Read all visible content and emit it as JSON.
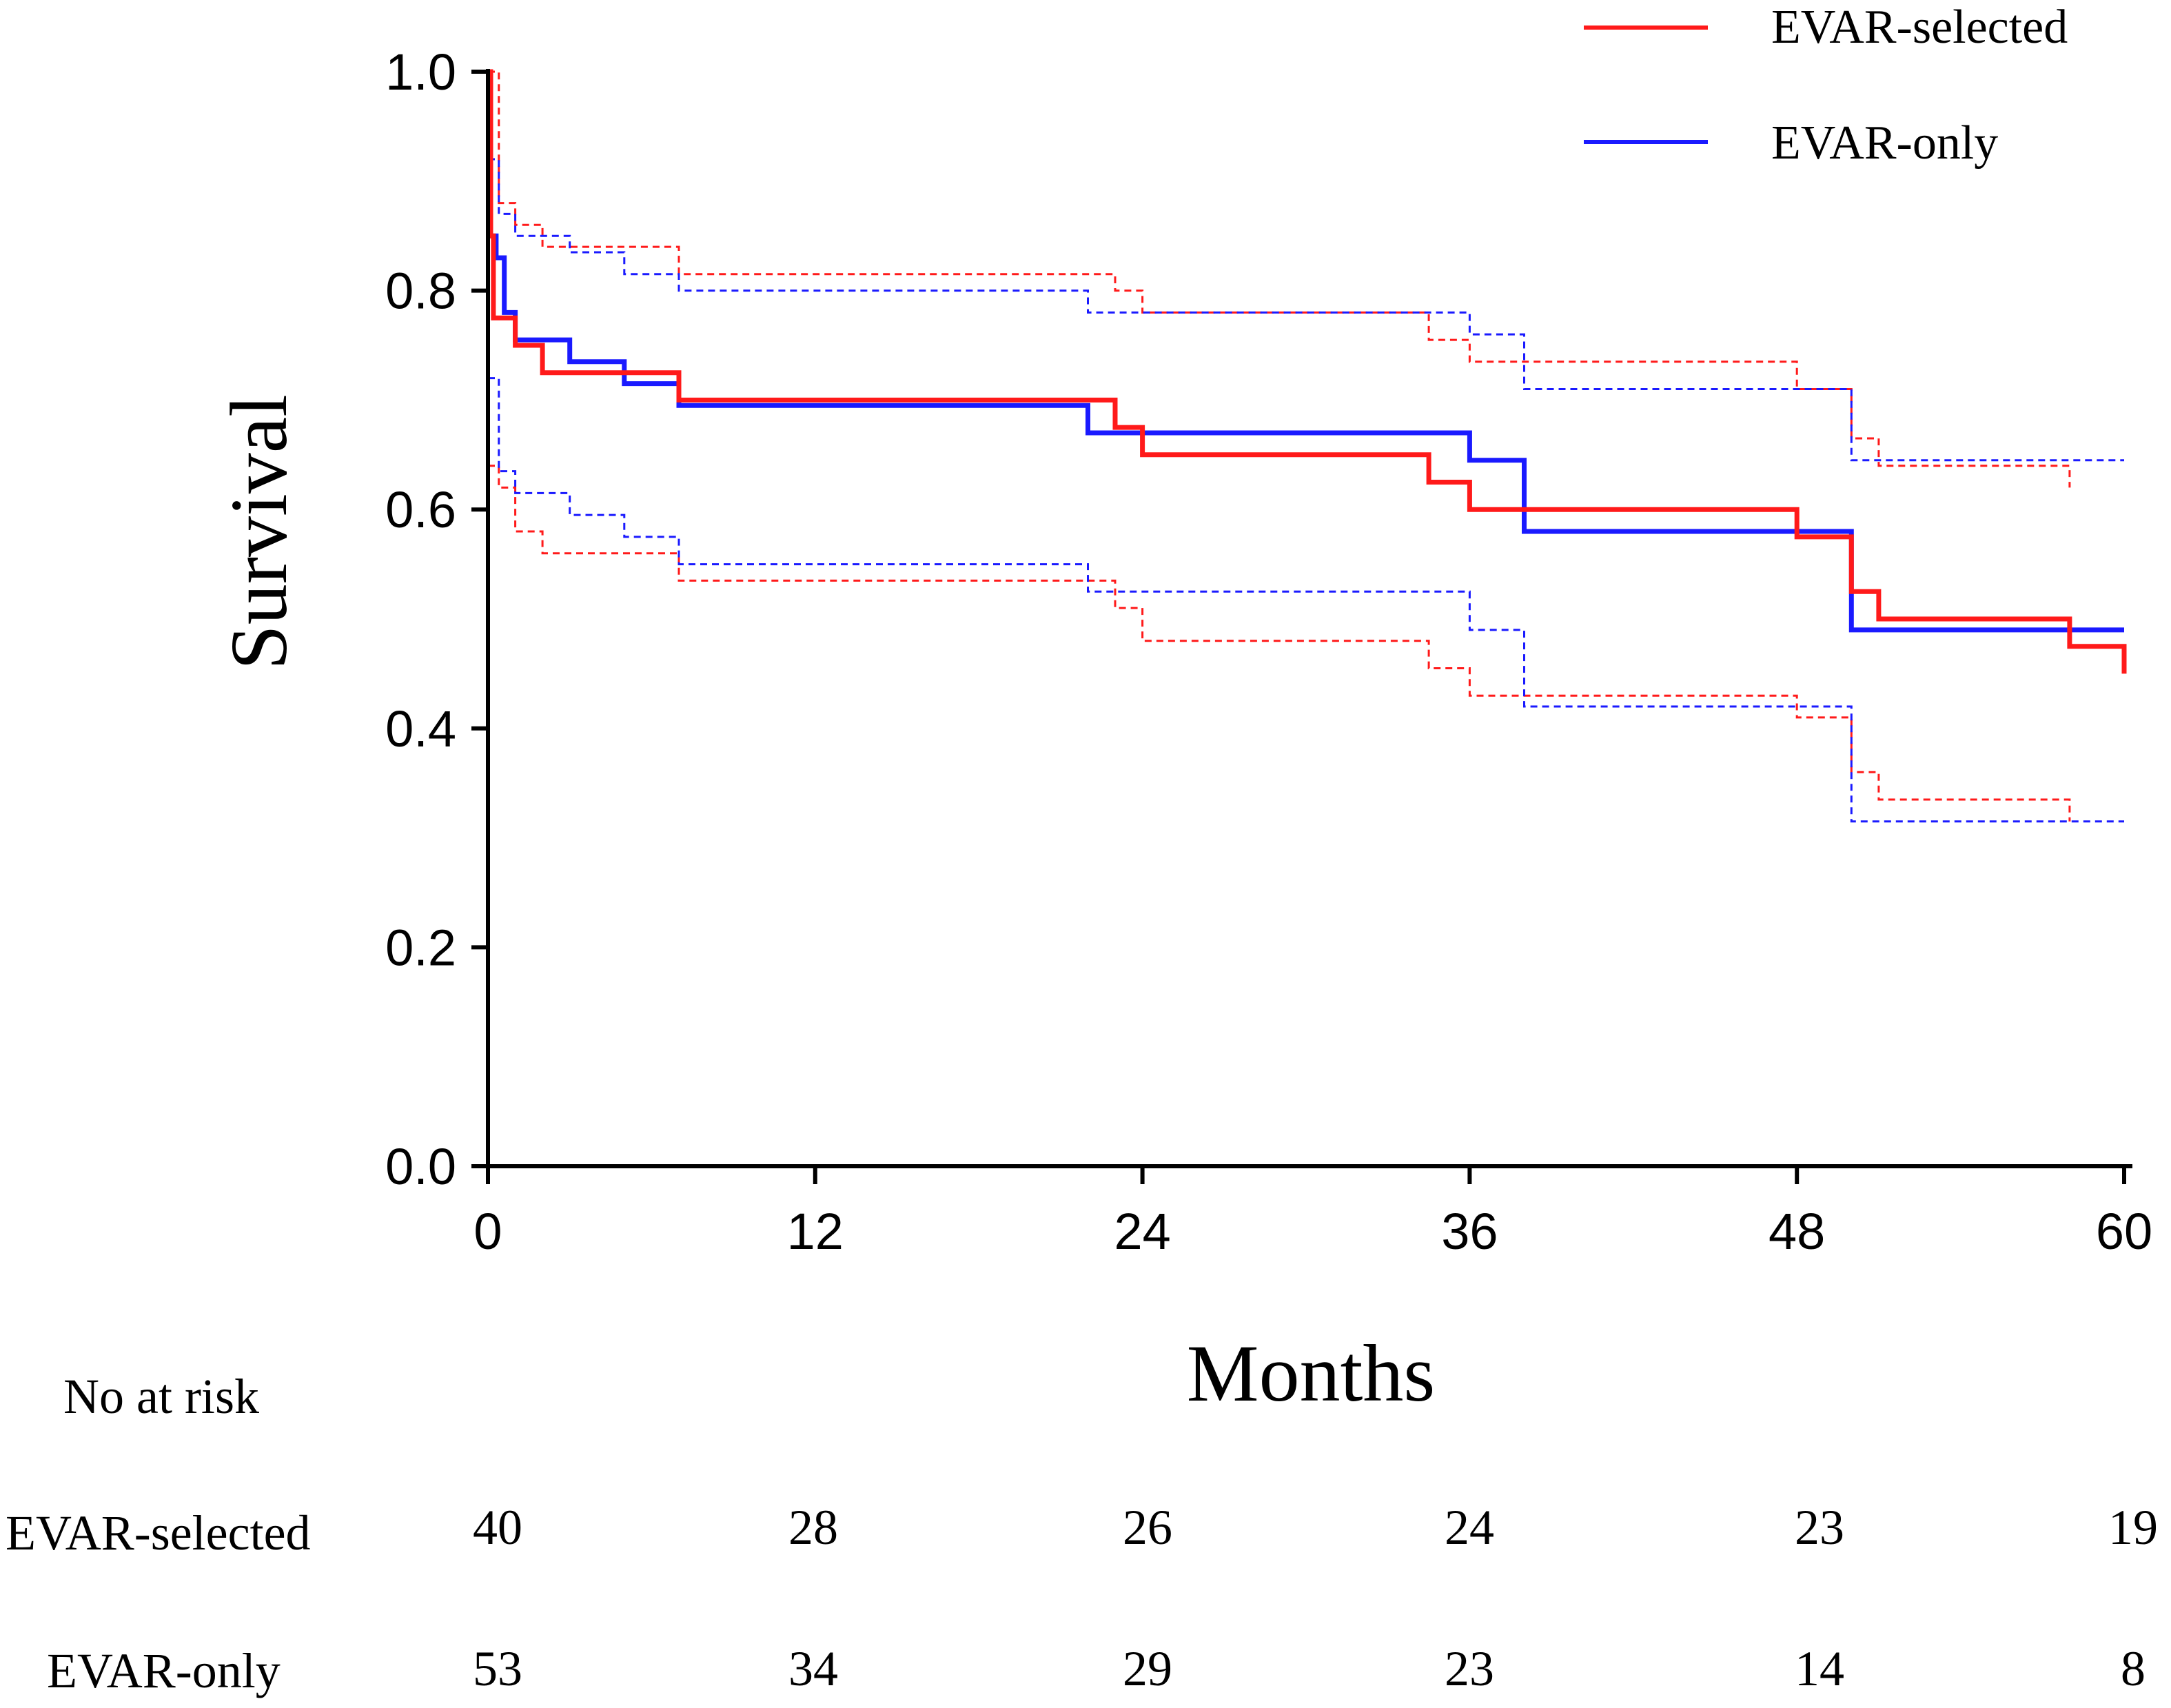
{
  "chart_data": {
    "type": "line",
    "subtype": "kaplan-meier",
    "title": "",
    "xlabel": "Months",
    "ylabel": "Survival",
    "xlim": [
      0,
      60
    ],
    "ylim": [
      0,
      1.0
    ],
    "x_ticks": [
      0,
      12,
      24,
      36,
      48,
      60
    ],
    "y_ticks": [
      0.0,
      0.2,
      0.4,
      0.6,
      0.8,
      1.0
    ],
    "x_tick_labels": [
      "0",
      "12",
      "24",
      "36",
      "48",
      "60"
    ],
    "y_tick_labels": [
      "0.0",
      "0.2",
      "0.4",
      "0.6",
      "0.8",
      "1.0"
    ],
    "grid": false,
    "legend_position": "top-right",
    "series": [
      {
        "name": "EVAR-selected",
        "color": "#ff1a1a",
        "steps": [
          [
            0,
            1.0
          ],
          [
            0.1,
            0.85
          ],
          [
            0.2,
            0.775
          ],
          [
            1,
            0.75
          ],
          [
            2,
            0.725
          ],
          [
            7,
            0.7
          ],
          [
            23,
            0.675
          ],
          [
            24,
            0.65
          ],
          [
            34.5,
            0.625
          ],
          [
            36,
            0.6
          ],
          [
            48,
            0.575
          ],
          [
            50,
            0.525
          ],
          [
            51,
            0.5
          ],
          [
            58,
            0.475
          ],
          [
            60,
            0.45
          ]
        ],
        "ci_upper": [
          [
            0,
            1.0
          ],
          [
            0.4,
            0.88
          ],
          [
            1,
            0.86
          ],
          [
            2,
            0.84
          ],
          [
            7,
            0.815
          ],
          [
            23,
            0.8
          ],
          [
            24,
            0.78
          ],
          [
            34.5,
            0.755
          ],
          [
            36,
            0.735
          ],
          [
            48,
            0.71
          ],
          [
            50,
            0.665
          ],
          [
            51,
            0.64
          ],
          [
            58,
            0.62
          ]
        ],
        "ci_lower": [
          [
            0,
            0.64
          ],
          [
            0.4,
            0.62
          ],
          [
            1,
            0.58
          ],
          [
            2,
            0.56
          ],
          [
            7,
            0.535
          ],
          [
            23,
            0.51
          ],
          [
            24,
            0.48
          ],
          [
            34.5,
            0.455
          ],
          [
            36,
            0.43
          ],
          [
            48,
            0.41
          ],
          [
            50,
            0.36
          ],
          [
            51,
            0.335
          ],
          [
            58,
            0.315
          ]
        ]
      },
      {
        "name": "EVAR-only",
        "color": "#1a1aff",
        "steps": [
          [
            0,
            1.0
          ],
          [
            0.1,
            0.85
          ],
          [
            0.3,
            0.83
          ],
          [
            0.6,
            0.78
          ],
          [
            1,
            0.755
          ],
          [
            3,
            0.735
          ],
          [
            5,
            0.715
          ],
          [
            7,
            0.695
          ],
          [
            22,
            0.67
          ],
          [
            36,
            0.645
          ],
          [
            38,
            0.58
          ],
          [
            50,
            0.49
          ],
          [
            60,
            0.49
          ]
        ],
        "ci_upper": [
          [
            0,
            0.92
          ],
          [
            0.4,
            0.87
          ],
          [
            1,
            0.85
          ],
          [
            3,
            0.835
          ],
          [
            5,
            0.815
          ],
          [
            7,
            0.8
          ],
          [
            22,
            0.78
          ],
          [
            36,
            0.76
          ],
          [
            38,
            0.71
          ],
          [
            50,
            0.645
          ],
          [
            60,
            0.645
          ]
        ],
        "ci_lower": [
          [
            0,
            0.72
          ],
          [
            0.4,
            0.635
          ],
          [
            1,
            0.615
          ],
          [
            3,
            0.595
          ],
          [
            5,
            0.575
          ],
          [
            7,
            0.55
          ],
          [
            22,
            0.525
          ],
          [
            36,
            0.49
          ],
          [
            38,
            0.42
          ],
          [
            50,
            0.315
          ],
          [
            60,
            0.315
          ]
        ]
      }
    ],
    "risk_table": {
      "title": "No at risk",
      "timepoints": [
        0,
        12,
        24,
        36,
        48,
        60
      ],
      "rows": [
        {
          "label": "EVAR-selected",
          "values": [
            "40",
            "28",
            "26",
            "24",
            "23",
            "19"
          ]
        },
        {
          "label": "EVAR-only",
          "values": [
            "53",
            "34",
            "29",
            "23",
            "14",
            "8"
          ]
        }
      ]
    }
  }
}
